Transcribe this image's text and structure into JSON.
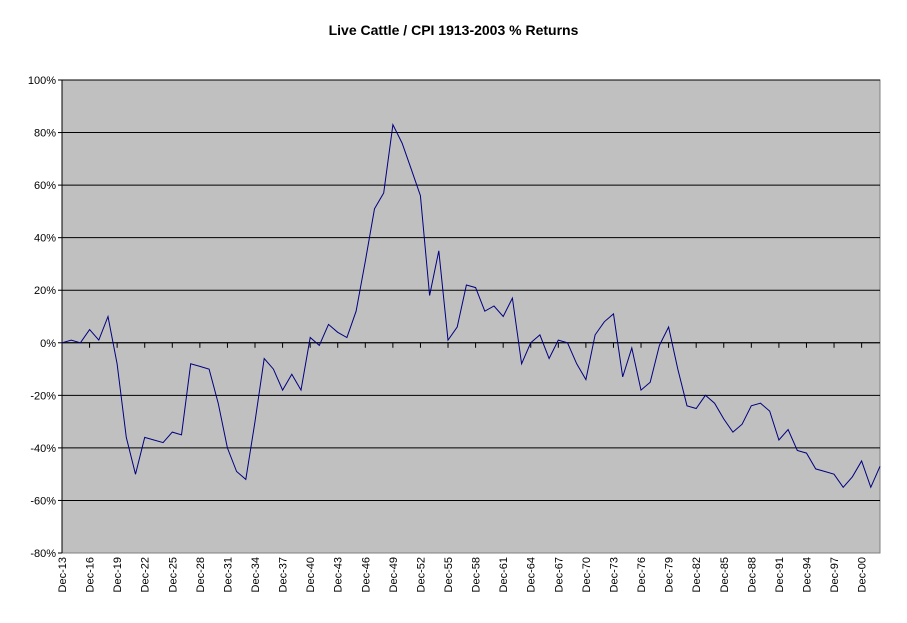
{
  "chart_data": {
    "type": "line",
    "title": "Live Cattle / CPI  1913-2003  % Returns",
    "xlabel": "",
    "ylabel": "",
    "ylim": [
      -80,
      100
    ],
    "yticks": [
      "100%",
      "80%",
      "60%",
      "40%",
      "20%",
      "0%",
      "-20%",
      "-40%",
      "-60%",
      "-80%"
    ],
    "ytick_values": [
      100,
      80,
      60,
      40,
      20,
      0,
      -20,
      -40,
      -60,
      -80
    ],
    "grid": true,
    "legend": "none",
    "colors": {
      "line": "#000080",
      "plot_bg": "#c0c0c0",
      "grid": "#000000"
    },
    "x": [
      1913,
      1914,
      1915,
      1916,
      1917,
      1918,
      1919,
      1920,
      1921,
      1922,
      1923,
      1924,
      1925,
      1926,
      1927,
      1928,
      1929,
      1930,
      1931,
      1932,
      1933,
      1934,
      1935,
      1936,
      1937,
      1938,
      1939,
      1940,
      1941,
      1942,
      1943,
      1944,
      1945,
      1946,
      1947,
      1948,
      1949,
      1950,
      1951,
      1952,
      1953,
      1954,
      1955,
      1956,
      1957,
      1958,
      1959,
      1960,
      1961,
      1962,
      1963,
      1964,
      1965,
      1966,
      1967,
      1968,
      1969,
      1970,
      1971,
      1972,
      1973,
      1974,
      1975,
      1976,
      1977,
      1978,
      1979,
      1980,
      1981,
      1982,
      1983,
      1984,
      1985,
      1986,
      1987,
      1988,
      1989,
      1990,
      1991,
      1992,
      1993,
      1994,
      1995,
      1996,
      1997,
      1998,
      1999,
      2000,
      2001,
      2002
    ],
    "series": [
      {
        "name": "Live Cattle / CPI",
        "values": [
          0,
          1,
          0,
          5,
          1,
          10,
          -8,
          -36,
          -50,
          -36,
          -37,
          -38,
          -34,
          -35,
          -8,
          -9,
          -10,
          -23,
          -40,
          -49,
          -52,
          -30,
          -6,
          -10,
          -18,
          -12,
          -18,
          2,
          -1,
          7,
          4,
          2,
          12,
          31,
          51,
          57,
          83,
          76,
          66,
          56,
          18,
          35,
          1,
          6,
          22,
          21,
          12,
          14,
          10,
          17,
          -8,
          0,
          3,
          -6,
          1,
          0,
          -8,
          -14,
          3,
          8,
          11,
          -13,
          -2,
          -18,
          -15,
          -1,
          6,
          -10,
          -24,
          -25,
          -20,
          -23,
          -29,
          -34,
          -31,
          -24,
          -23,
          -26,
          -37,
          -33,
          -41,
          -42,
          -48,
          -49,
          -50,
          -55,
          -51,
          -45,
          -55,
          -47
        ]
      }
    ],
    "categories": [
      "Dec-13",
      "Dec-16",
      "Dec-19",
      "Dec-22",
      "Dec-25",
      "Dec-28",
      "Dec-31",
      "Dec-34",
      "Dec-37",
      "Dec-40",
      "Dec-43",
      "Dec-46",
      "Dec-49",
      "Dec-52",
      "Dec-55",
      "Dec-58",
      "Dec-61",
      "Dec-64",
      "Dec-67",
      "Dec-70",
      "Dec-73",
      "Dec-76",
      "Dec-79",
      "Dec-82",
      "Dec-85",
      "Dec-88",
      "Dec-91",
      "Dec-94",
      "Dec-97",
      "Dec-00"
    ]
  }
}
